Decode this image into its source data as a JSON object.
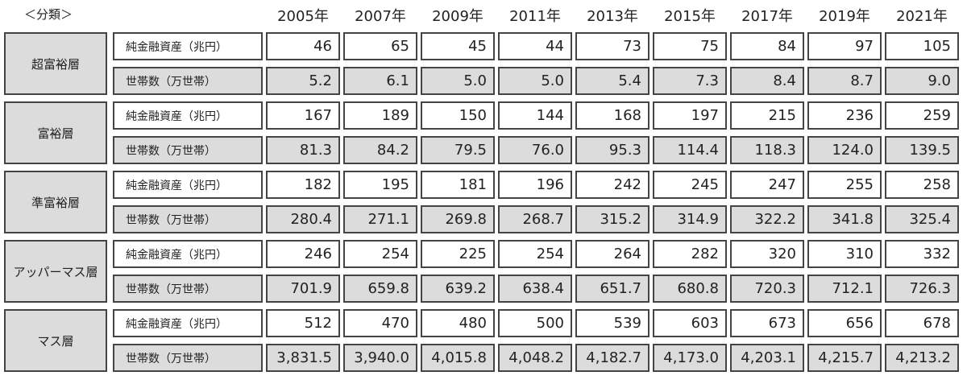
{
  "header": {
    "label": "＜分類＞",
    "years": [
      "2005年",
      "2007年",
      "2009年",
      "2011年",
      "2013年",
      "2015年",
      "2017年",
      "2019年",
      "2021年"
    ]
  },
  "groups": [
    {
      "name": "超富裕層",
      "rows": [
        {
          "label": "純金融資産（兆円）",
          "values": [
            "46",
            "65",
            "45",
            "44",
            "73",
            "75",
            "84",
            "97",
            "105"
          ]
        },
        {
          "label": "世帯数（万世帯）",
          "values": [
            "5.2",
            "6.1",
            "5.0",
            "5.0",
            "5.4",
            "7.3",
            "8.4",
            "8.7",
            "9.0"
          ]
        }
      ]
    },
    {
      "name": "富裕層",
      "rows": [
        {
          "label": "純金融資産（兆円）",
          "values": [
            "167",
            "189",
            "150",
            "144",
            "168",
            "197",
            "215",
            "236",
            "259"
          ]
        },
        {
          "label": "世帯数（万世帯）",
          "values": [
            "81.3",
            "84.2",
            "79.5",
            "76.0",
            "95.3",
            "114.4",
            "118.3",
            "124.0",
            "139.5"
          ]
        }
      ]
    },
    {
      "name": "準富裕層",
      "rows": [
        {
          "label": "純金融資産（兆円）",
          "values": [
            "182",
            "195",
            "181",
            "196",
            "242",
            "245",
            "247",
            "255",
            "258"
          ]
        },
        {
          "label": "世帯数（万世帯）",
          "values": [
            "280.4",
            "271.1",
            "269.8",
            "268.7",
            "315.2",
            "314.9",
            "322.2",
            "341.8",
            "325.4"
          ]
        }
      ]
    },
    {
      "name": "アッパーマス層",
      "rows": [
        {
          "label": "純金融資産（兆円）",
          "values": [
            "246",
            "254",
            "225",
            "254",
            "264",
            "282",
            "320",
            "310",
            "332"
          ]
        },
        {
          "label": "世帯数（万世帯）",
          "values": [
            "701.9",
            "659.8",
            "639.2",
            "638.4",
            "651.7",
            "680.8",
            "720.3",
            "712.1",
            "726.3"
          ]
        }
      ]
    },
    {
      "name": "マス層",
      "rows": [
        {
          "label": "純金融資産（兆円）",
          "values": [
            "512",
            "470",
            "480",
            "500",
            "539",
            "603",
            "673",
            "656",
            "678"
          ]
        },
        {
          "label": "世帯数（万世帯）",
          "values": [
            "3,831.5",
            "3,940.0",
            "4,015.8",
            "4,048.2",
            "4,182.7",
            "4,173.0",
            "4,203.1",
            "4,215.7",
            "4,213.2"
          ]
        }
      ]
    }
  ]
}
